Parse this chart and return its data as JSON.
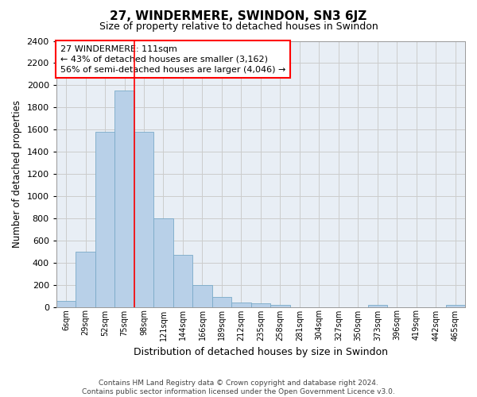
{
  "title": "27, WINDERMERE, SWINDON, SN3 6JZ",
  "subtitle": "Size of property relative to detached houses in Swindon",
  "xlabel": "Distribution of detached houses by size in Swindon",
  "ylabel": "Number of detached properties",
  "footer_line1": "Contains HM Land Registry data © Crown copyright and database right 2024.",
  "footer_line2": "Contains public sector information licensed under the Open Government Licence v3.0.",
  "categories": [
    "6sqm",
    "29sqm",
    "52sqm",
    "75sqm",
    "98sqm",
    "121sqm",
    "144sqm",
    "166sqm",
    "189sqm",
    "212sqm",
    "235sqm",
    "258sqm",
    "281sqm",
    "304sqm",
    "327sqm",
    "350sqm",
    "373sqm",
    "396sqm",
    "419sqm",
    "442sqm",
    "465sqm"
  ],
  "values": [
    55,
    500,
    1580,
    1950,
    1580,
    800,
    470,
    200,
    90,
    40,
    30,
    20,
    0,
    0,
    0,
    0,
    20,
    0,
    0,
    0,
    20
  ],
  "bar_color": "#b8d0e8",
  "bar_edge_color": "#7aaac8",
  "vline_x": 3.52,
  "vline_color": "red",
  "annotation_title": "27 WINDERMERE: 111sqm",
  "annotation_line1": "← 43% of detached houses are smaller (3,162)",
  "annotation_line2": "56% of semi-detached houses are larger (4,046) →",
  "annotation_box_color": "white",
  "annotation_box_edge_color": "red",
  "ylim": [
    0,
    2400
  ],
  "yticks": [
    0,
    200,
    400,
    600,
    800,
    1000,
    1200,
    1400,
    1600,
    1800,
    2000,
    2200,
    2400
  ],
  "grid_color": "#cccccc",
  "background_color": "#e8eef5"
}
